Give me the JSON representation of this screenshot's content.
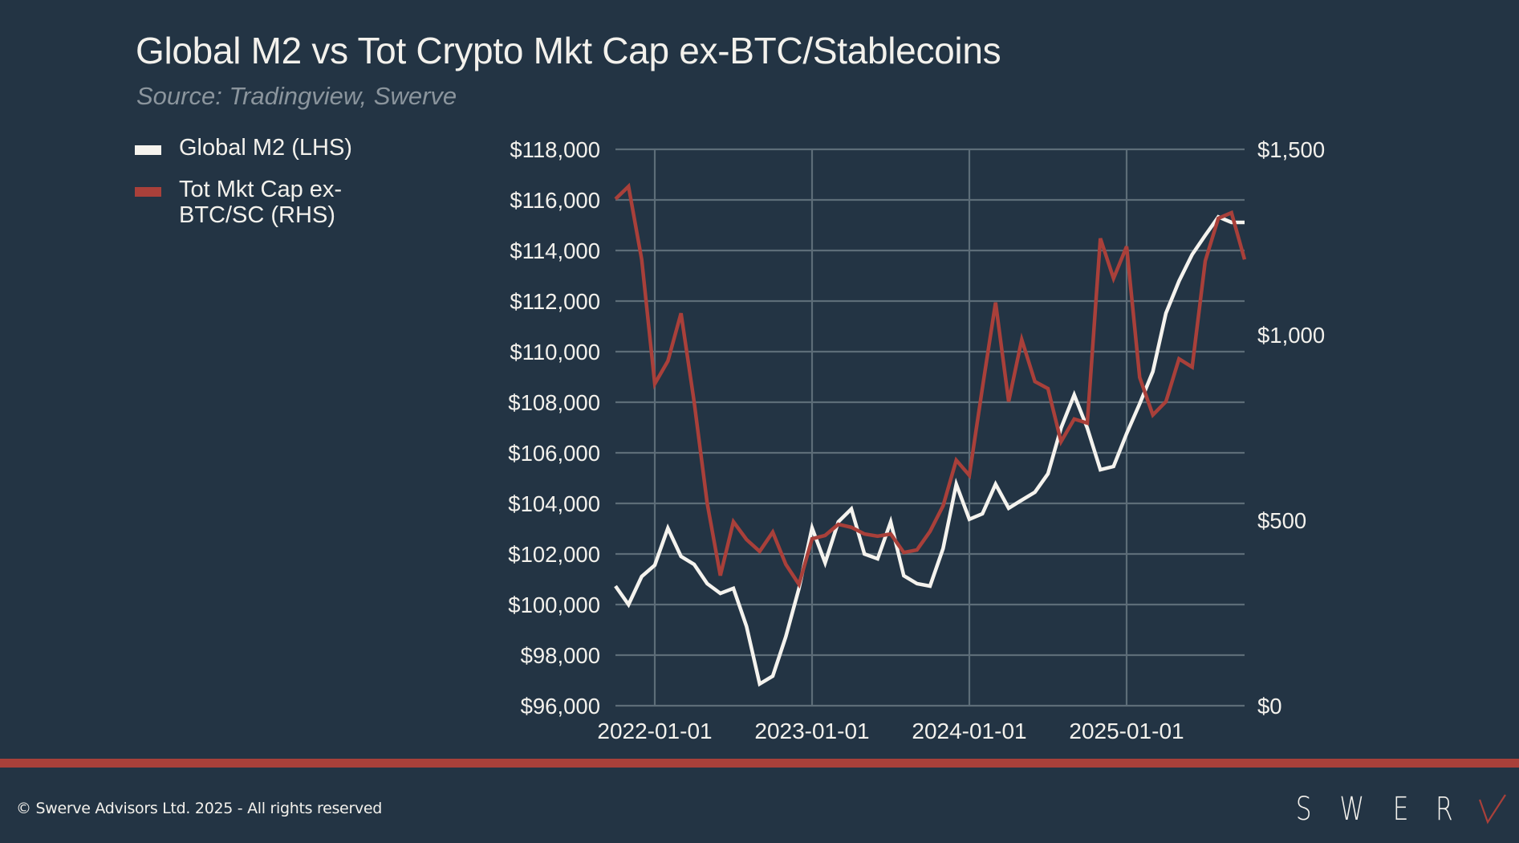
{
  "header": {
    "title": "Global M2 vs Tot Crypto Mkt Cap ex-BTC/Stablecoins",
    "subtitle": "Source: Tradingview, Swerve"
  },
  "legend": {
    "items": [
      {
        "label": "Global M2 (LHS)",
        "color": "#f5f3ee"
      },
      {
        "label": "Tot Mkt Cap ex-BTC/SC (RHS)",
        "color": "#a9403a"
      }
    ]
  },
  "footer": {
    "copyright": "© Swerve Advisors Ltd. 2025 - All rights reserved",
    "logo_letters": [
      "S",
      "W",
      "E",
      "R",
      "V",
      "E"
    ],
    "accent_color": "#a9403a"
  },
  "chart_data": {
    "type": "line",
    "title": "Global M2 vs Tot Crypto Mkt Cap ex-BTC/Stablecoins",
    "subtitle": "Source: Tradingview, Swerve",
    "xlabel": "",
    "ylabel_left": "",
    "ylabel_right": "",
    "legend_position": "top-left",
    "grid": true,
    "x": [
      "2021-10",
      "2021-11",
      "2021-12",
      "2022-01",
      "2022-02",
      "2022-03",
      "2022-04",
      "2022-05",
      "2022-06",
      "2022-07",
      "2022-08",
      "2022-09",
      "2022-10",
      "2022-11",
      "2022-12",
      "2023-01",
      "2023-02",
      "2023-03",
      "2023-04",
      "2023-05",
      "2023-06",
      "2023-07",
      "2023-08",
      "2023-09",
      "2023-10",
      "2023-11",
      "2023-12",
      "2024-01",
      "2024-02",
      "2024-03",
      "2024-04",
      "2024-05",
      "2024-06",
      "2024-07",
      "2024-08",
      "2024-09",
      "2024-10",
      "2024-11",
      "2024-12",
      "2025-01",
      "2025-02",
      "2025-03",
      "2025-04",
      "2025-05",
      "2025-06",
      "2025-07",
      "2025-08",
      "2025-09",
      "2025-10"
    ],
    "x_ticks": [
      "2022-01-01",
      "2023-01-01",
      "2024-01-01",
      "2025-01-01"
    ],
    "x_tick_positions": [
      "2022-01",
      "2023-01",
      "2024-01",
      "2025-01"
    ],
    "y_left": {
      "range": [
        96000,
        118000
      ],
      "ticks": [
        96000,
        98000,
        100000,
        102000,
        104000,
        106000,
        108000,
        110000,
        112000,
        114000,
        116000,
        118000
      ],
      "tick_labels": [
        "$96,000",
        "$98,000",
        "$100,000",
        "$102,000",
        "$104,000",
        "$106,000",
        "$108,000",
        "$110,000",
        "$112,000",
        "$114,000",
        "$116,000",
        "$118,000"
      ]
    },
    "y_right": {
      "range": [
        0,
        1500
      ],
      "ticks": [
        0,
        500,
        1000,
        1500
      ],
      "tick_labels": [
        "$0",
        "$500",
        "$1,000",
        "$1,500"
      ]
    },
    "series": [
      {
        "name": "Global M2 (LHS)",
        "axis": "left",
        "color": "#f5f3ee",
        "values": [
          100730,
          100000,
          101110,
          101560,
          103020,
          101900,
          101590,
          100830,
          100440,
          100640,
          99140,
          96860,
          97170,
          98730,
          100640,
          103030,
          101650,
          103270,
          103780,
          102000,
          101810,
          103270,
          101140,
          100830,
          100730,
          102220,
          104760,
          103370,
          103590,
          104760,
          103810,
          104130,
          104440,
          105170,
          106980,
          108290,
          106980,
          105330,
          105460,
          106760,
          107940,
          109210,
          111520,
          112790,
          113840,
          114600,
          115330,
          115110,
          115110
        ]
      },
      {
        "name": "Tot Mkt Cap ex-BTC/SC (RHS)",
        "axis": "right",
        "color": "#a9403a",
        "values": [
          1366,
          1400,
          1203,
          868,
          929,
          1058,
          820,
          546,
          351,
          496,
          448,
          416,
          468,
          381,
          327,
          450,
          459,
          489,
          481,
          463,
          457,
          463,
          413,
          420,
          470,
          539,
          662,
          621,
          857,
          1087,
          820,
          987,
          874,
          855,
          712,
          773,
          762,
          1260,
          1152,
          1238,
          885,
          784,
          820,
          935,
          913,
          1199,
          1314,
          1329,
          1203
        ]
      }
    ]
  }
}
